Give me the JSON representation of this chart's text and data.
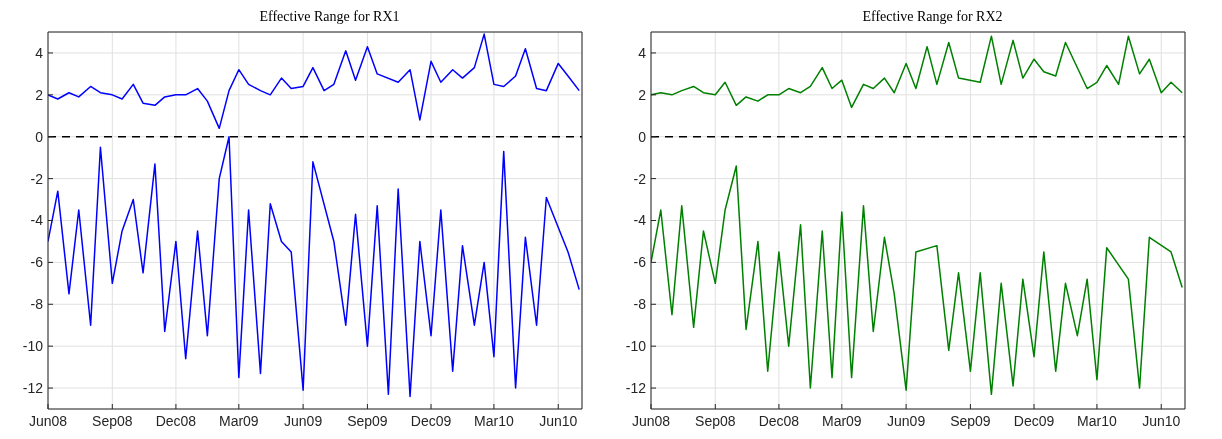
{
  "chart_data": [
    {
      "type": "line",
      "title": "Effective Range for RX1",
      "grid": true,
      "x": [
        "2008-06-01",
        "2008-06-15",
        "2008-07-01",
        "2008-07-15",
        "2008-08-01",
        "2008-08-15",
        "2008-09-01",
        "2008-09-15",
        "2008-10-01",
        "2008-10-15",
        "2008-11-01",
        "2008-11-15",
        "2008-12-01",
        "2008-12-15",
        "2009-01-01",
        "2009-01-15",
        "2009-02-01",
        "2009-02-15",
        "2009-03-01",
        "2009-03-15",
        "2009-04-01",
        "2009-04-15",
        "2009-05-01",
        "2009-05-15",
        "2009-06-01",
        "2009-06-15",
        "2009-07-01",
        "2009-07-15",
        "2009-08-01",
        "2009-08-15",
        "2009-09-01",
        "2009-09-15",
        "2009-10-01",
        "2009-10-15",
        "2009-11-01",
        "2009-11-15",
        "2009-12-01",
        "2009-12-15",
        "2010-01-01",
        "2010-01-15",
        "2010-02-01",
        "2010-02-15",
        "2010-03-01",
        "2010-03-15",
        "2010-04-01",
        "2010-04-15",
        "2010-05-01",
        "2010-05-15",
        "2010-06-01",
        "2010-06-15",
        "2010-07-01"
      ],
      "series": [
        {
          "color": "#0000ff",
          "values": [
            2.0,
            1.8,
            2.1,
            1.9,
            2.4,
            2.1,
            2.0,
            1.8,
            2.5,
            1.6,
            1.5,
            1.9,
            2.0,
            2.0,
            2.3,
            1.7,
            0.4,
            2.2,
            3.2,
            2.5,
            2.2,
            2.0,
            2.8,
            2.3,
            2.4,
            3.3,
            2.2,
            2.5,
            4.1,
            2.7,
            4.3,
            3.0,
            null,
            2.6,
            3.2,
            0.8,
            3.6,
            2.6,
            3.2,
            2.8,
            3.3,
            4.9,
            2.5,
            2.4,
            2.9,
            4.2,
            2.3,
            2.2,
            3.5,
            2.9,
            2.2
          ]
        },
        {
          "color": "#0000ff",
          "values": [
            -5,
            -2.6,
            -7.5,
            -3.5,
            -9,
            -0.5,
            -7,
            -4.5,
            -3,
            -6.5,
            -1.3,
            -9.3,
            -5,
            -10.6,
            -4.5,
            -9.5,
            -2,
            0,
            -11.5,
            -3.5,
            -11.3,
            -3.2,
            -5,
            -5.5,
            -12.1,
            -1.2,
            null,
            -5,
            -9,
            -3.7,
            -10,
            -3.3,
            -12.3,
            -2.5,
            -12.4,
            -5,
            -9.5,
            -3.5,
            -11.2,
            -5.2,
            -9,
            -6,
            -10.5,
            -0.7,
            -12,
            -4.8,
            -9,
            -2.9,
            null,
            -5.5,
            -7.3
          ]
        }
      ],
      "xlim": [
        "2008-06-01",
        "2010-07-05"
      ],
      "xticks": [
        {
          "value": "2008-06-01",
          "label": "Jun08"
        },
        {
          "value": "2008-09-01",
          "label": "Sep08"
        },
        {
          "value": "2008-12-01",
          "label": "Dec08"
        },
        {
          "value": "2009-03-01",
          "label": "Mar09"
        },
        {
          "value": "2009-06-01",
          "label": "Jun09"
        },
        {
          "value": "2009-09-01",
          "label": "Sep09"
        },
        {
          "value": "2009-12-01",
          "label": "Dec09"
        },
        {
          "value": "2010-03-01",
          "label": "Mar10"
        },
        {
          "value": "2010-06-01",
          "label": "Jun10"
        }
      ],
      "ylim": [
        -13,
        5
      ],
      "yticks": [
        -12,
        -10,
        -8,
        -6,
        -4,
        -2,
        0,
        2,
        4
      ],
      "ref_lines": [
        {
          "axis": "y",
          "value": 0,
          "color": "#000000",
          "line_style": "dashed"
        }
      ]
    },
    {
      "type": "line",
      "title": "Effective Range for RX2",
      "grid": true,
      "x": [
        "2008-06-01",
        "2008-06-15",
        "2008-07-01",
        "2008-07-15",
        "2008-08-01",
        "2008-08-15",
        "2008-09-01",
        "2008-09-15",
        "2008-10-01",
        "2008-10-15",
        "2008-11-01",
        "2008-11-15",
        "2008-12-01",
        "2008-12-15",
        "2009-01-01",
        "2009-01-15",
        "2009-02-01",
        "2009-02-15",
        "2009-03-01",
        "2009-03-15",
        "2009-04-01",
        "2009-04-15",
        "2009-05-01",
        "2009-05-15",
        "2009-06-01",
        "2009-06-15",
        "2009-07-01",
        "2009-07-15",
        "2009-08-01",
        "2009-08-15",
        "2009-09-01",
        "2009-09-15",
        "2009-10-01",
        "2009-10-15",
        "2009-11-01",
        "2009-11-15",
        "2009-12-01",
        "2009-12-15",
        "2010-01-01",
        "2010-01-15",
        "2010-02-01",
        "2010-02-15",
        "2010-03-01",
        "2010-03-15",
        "2010-04-01",
        "2010-04-15",
        "2010-05-01",
        "2010-05-15",
        "2010-06-01",
        "2010-06-15",
        "2010-07-01"
      ],
      "series": [
        {
          "color": "#008000",
          "values": [
            2.0,
            2.1,
            2.0,
            2.2,
            2.4,
            2.1,
            2.0,
            2.6,
            1.5,
            1.9,
            1.7,
            2.0,
            2.0,
            2.3,
            2.1,
            2.4,
            3.3,
            2.3,
            2.7,
            1.4,
            2.5,
            2.3,
            2.8,
            2.1,
            3.5,
            2.3,
            4.3,
            2.5,
            4.5,
            2.8,
            null,
            2.6,
            4.8,
            2.5,
            4.6,
            2.8,
            3.7,
            3.1,
            2.9,
            4.5,
            null,
            2.3,
            2.6,
            3.4,
            2.5,
            4.8,
            3.0,
            3.7,
            2.1,
            2.6,
            2.1
          ]
        },
        {
          "color": "#008000",
          "values": [
            -6,
            -3.5,
            -8.5,
            -3.3,
            -9.1,
            -4.5,
            -7,
            -3.5,
            -1.4,
            -9.2,
            -5,
            -11.2,
            -5.5,
            -10,
            -4.2,
            -12,
            -4.5,
            -11.5,
            -3.6,
            -11.5,
            -3.3,
            -9.3,
            -4.8,
            -7.5,
            -12.1,
            -5.5,
            null,
            -5.2,
            -10.2,
            -6.5,
            -11.2,
            -6.5,
            -12.3,
            -7,
            -11.9,
            -6.8,
            -10.5,
            -5.5,
            -11.2,
            -7,
            -9.5,
            -6.8,
            -11.6,
            -5.3,
            null,
            -6.8,
            -12,
            -4.8,
            null,
            -5.5,
            -7.2
          ]
        }
      ],
      "xlim": [
        "2008-06-01",
        "2010-07-05"
      ],
      "xticks": [
        {
          "value": "2008-06-01",
          "label": "Jun08"
        },
        {
          "value": "2008-09-01",
          "label": "Sep08"
        },
        {
          "value": "2008-12-01",
          "label": "Dec08"
        },
        {
          "value": "2009-03-01",
          "label": "Mar09"
        },
        {
          "value": "2009-06-01",
          "label": "Jun09"
        },
        {
          "value": "2009-09-01",
          "label": "Sep09"
        },
        {
          "value": "2009-12-01",
          "label": "Dec09"
        },
        {
          "value": "2010-03-01",
          "label": "Mar10"
        },
        {
          "value": "2010-06-01",
          "label": "Jun10"
        }
      ],
      "ylim": [
        -13,
        5
      ],
      "yticks": [
        -12,
        -10,
        -8,
        -6,
        -4,
        -2,
        0,
        2,
        4
      ],
      "ref_lines": [
        {
          "axis": "y",
          "value": 0,
          "color": "#000000",
          "line_style": "dashed"
        }
      ]
    }
  ]
}
